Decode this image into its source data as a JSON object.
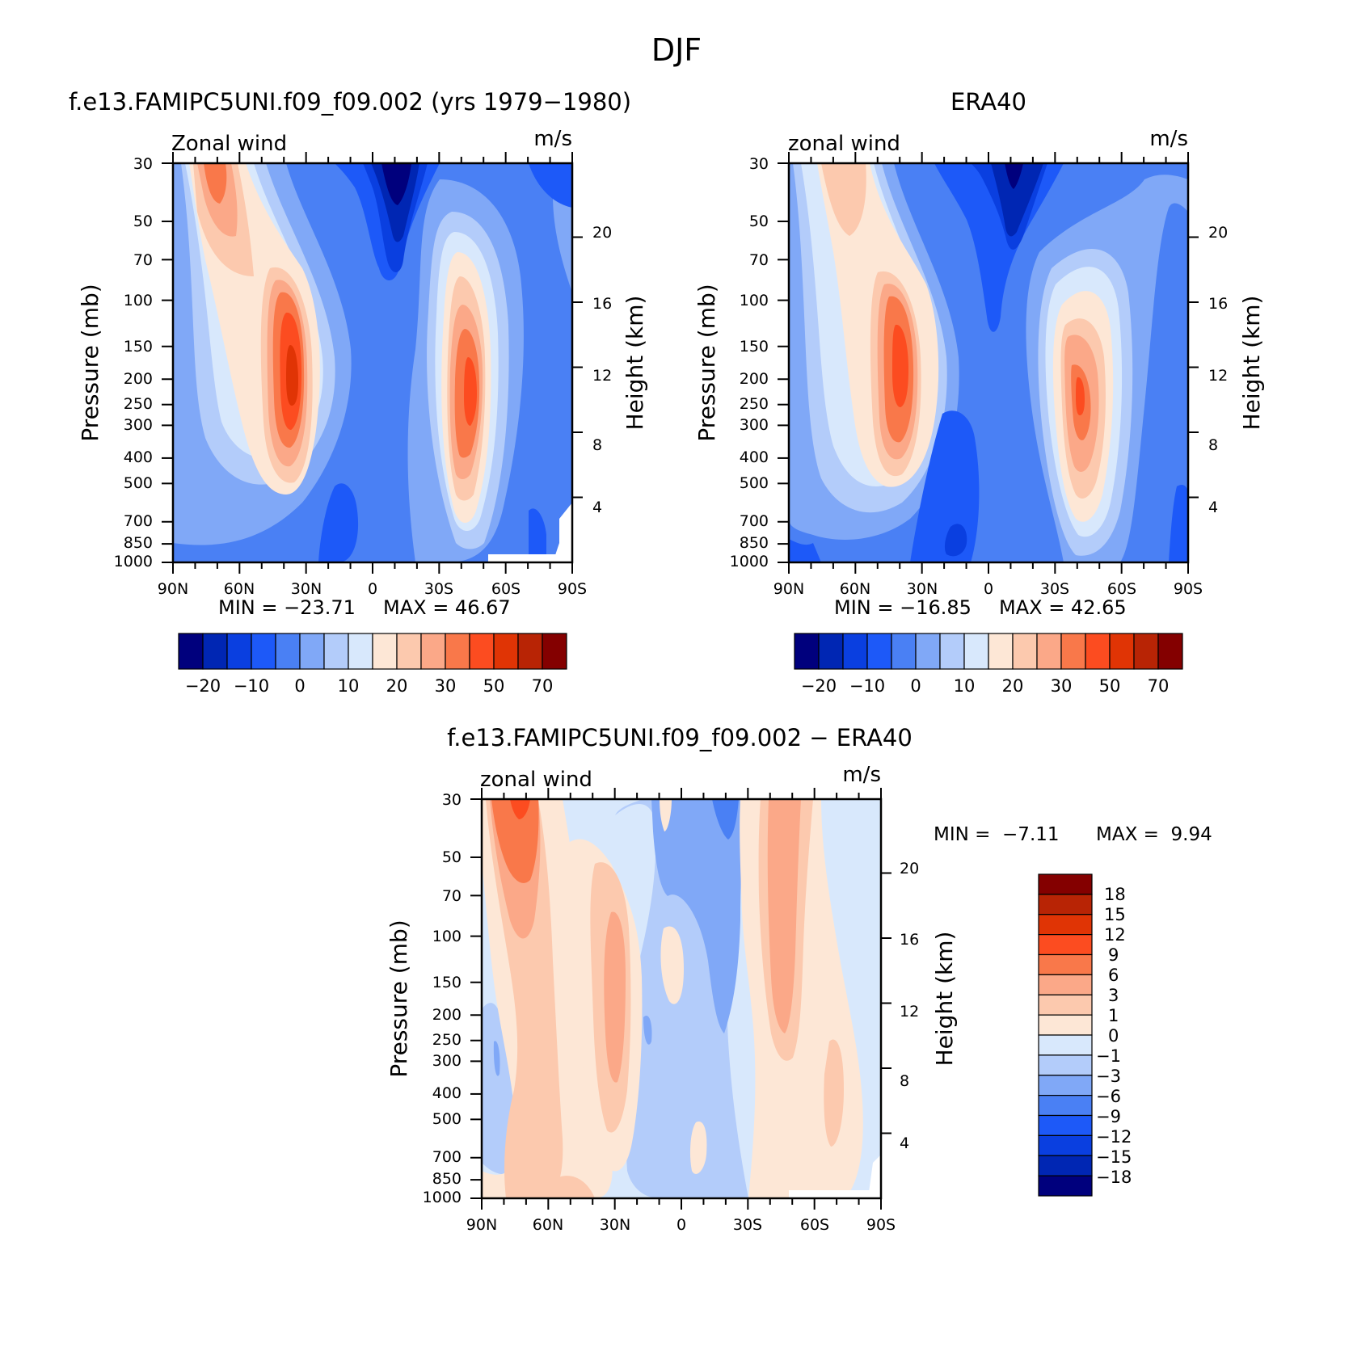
{
  "page_title": "DJF",
  "chart_data": [
    {
      "type": "contour",
      "title": "f.e13.FAMIPC5UNI.f09_f09.002 (yrs 1979−1980)",
      "subtitle_left": "Zonal wind",
      "subtitle_right": "m/s",
      "ylabel": "Pressure (mb)",
      "ylabel_right": "Height (km)",
      "x_ticks": [
        "90N",
        "60N",
        "30N",
        "0",
        "30S",
        "60S",
        "90S"
      ],
      "x_values": [
        90,
        60,
        30,
        0,
        -30,
        -60,
        -90
      ],
      "y_ticks": [
        30,
        50,
        70,
        100,
        150,
        200,
        250,
        300,
        400,
        500,
        700,
        850,
        1000
      ],
      "height_ticks": [
        20,
        16,
        12,
        8,
        4
      ],
      "ylim": [
        1000,
        30
      ],
      "y_scale": "log",
      "min_label": "MIN = −23.71",
      "max_label": "MAX = 46.67",
      "min": -23.71,
      "max": 46.67,
      "colorbar_labels": [
        "−20",
        "−10",
        "0",
        "10",
        "20",
        "30",
        "50",
        "70"
      ],
      "colorbar_colors": [
        "#00007d",
        "#0026b3",
        "#0a3fe0",
        "#1d59f8",
        "#4a80f4",
        "#80a8f7",
        "#b3ccfa",
        "#d8e8fc",
        "#fde7d6",
        "#fcc9ae",
        "#fba888",
        "#f9784a",
        "#fc4c20",
        "#e03405",
        "#b82405",
        "#840000"
      ],
      "features": [
        {
          "name": "NH subtropical jet core",
          "lat": 30,
          "pressure": 200,
          "value": 46.67
        },
        {
          "name": "SH subtropical jet core",
          "lat": -47,
          "pressure": 200,
          "value": 32
        },
        {
          "name": "NH stratospheric jet",
          "lat": 70,
          "pressure": 35,
          "value": 30
        },
        {
          "name": "Tropical easterlies",
          "lat": -17,
          "pressure": 30,
          "value": -23.71
        }
      ]
    },
    {
      "type": "contour",
      "title": "ERA40",
      "subtitle_left": "zonal wind",
      "subtitle_right": "m/s",
      "ylabel": "Pressure (mb)",
      "ylabel_right": "Height (km)",
      "x_ticks": [
        "90N",
        "60N",
        "30N",
        "0",
        "30S",
        "60S",
        "90S"
      ],
      "x_values": [
        90,
        60,
        30,
        0,
        -30,
        -60,
        -90
      ],
      "y_ticks": [
        30,
        50,
        70,
        100,
        150,
        200,
        250,
        300,
        400,
        500,
        700,
        850,
        1000
      ],
      "height_ticks": [
        20,
        16,
        12,
        8,
        4
      ],
      "ylim": [
        1000,
        30
      ],
      "y_scale": "log",
      "min_label": "MIN = −16.85",
      "max_label": "MAX = 42.65",
      "min": -16.85,
      "max": 42.65,
      "colorbar_labels": [
        "−20",
        "−10",
        "0",
        "10",
        "20",
        "30",
        "50",
        "70"
      ],
      "colorbar_colors": [
        "#00007d",
        "#0026b3",
        "#0a3fe0",
        "#1d59f8",
        "#4a80f4",
        "#80a8f7",
        "#b3ccfa",
        "#d8e8fc",
        "#fde7d6",
        "#fcc9ae",
        "#fba888",
        "#f9784a",
        "#fc4c20",
        "#e03405",
        "#b82405",
        "#840000"
      ],
      "features": [
        {
          "name": "NH subtropical jet core",
          "lat": 30,
          "pressure": 200,
          "value": 42.65
        },
        {
          "name": "SH subtropical jet core",
          "lat": -50,
          "pressure": 250,
          "value": 32
        },
        {
          "name": "NH stratospheric jet",
          "lat": 65,
          "pressure": 40,
          "value": 18
        },
        {
          "name": "Tropical easterlies",
          "lat": -15,
          "pressure": 30,
          "value": -16.85
        }
      ]
    },
    {
      "type": "contour",
      "title": "f.e13.FAMIPC5UNI.f09_f09.002 − ERA40",
      "subtitle_left": "zonal wind",
      "subtitle_right": "m/s",
      "ylabel": "Pressure (mb)",
      "ylabel_right": "Height (km)",
      "x_ticks": [
        "90N",
        "60N",
        "30N",
        "0",
        "30S",
        "60S",
        "90S"
      ],
      "x_values": [
        90,
        60,
        30,
        0,
        -30,
        -60,
        -90
      ],
      "y_ticks": [
        30,
        50,
        70,
        100,
        150,
        200,
        250,
        300,
        400,
        500,
        700,
        850,
        1000
      ],
      "height_ticks": [
        20,
        16,
        12,
        8,
        4
      ],
      "ylim": [
        1000,
        30
      ],
      "y_scale": "log",
      "min_label": "MIN =  −7.11",
      "max_label": "MAX =  9.94",
      "min": -7.11,
      "max": 9.94,
      "colorbar_labels": [
        "18",
        "15",
        "12",
        "9",
        "6",
        "3",
        "1",
        "0",
        "−1",
        "−3",
        "−6",
        "−9",
        "−12",
        "−15",
        "−18"
      ],
      "colorbar_colors": [
        "#840000",
        "#b82405",
        "#e03405",
        "#fc4c20",
        "#f9784a",
        "#fba888",
        "#fcc9ae",
        "#fde7d6",
        "#d8e8fc",
        "#b3ccfa",
        "#80a8f7",
        "#4a80f4",
        "#1d59f8",
        "#0a3fe0",
        "#0026b3",
        "#00007d"
      ],
      "features": [
        {
          "name": "NH polar stratosphere positive",
          "lat": 75,
          "pressure": 40,
          "value": 6
        },
        {
          "name": "NH midlatitude positive",
          "lat": 30,
          "pressure": 200,
          "value": 3
        },
        {
          "name": "SH midlatitude positive",
          "lat": -55,
          "pressure": 100,
          "value": 3
        },
        {
          "name": "Equatorial negative",
          "lat": -18,
          "pressure": 30,
          "value": -6
        },
        {
          "name": "Tropical mid-troposphere negative",
          "lat": -5,
          "pressure": 300,
          "value": -3
        }
      ]
    }
  ]
}
